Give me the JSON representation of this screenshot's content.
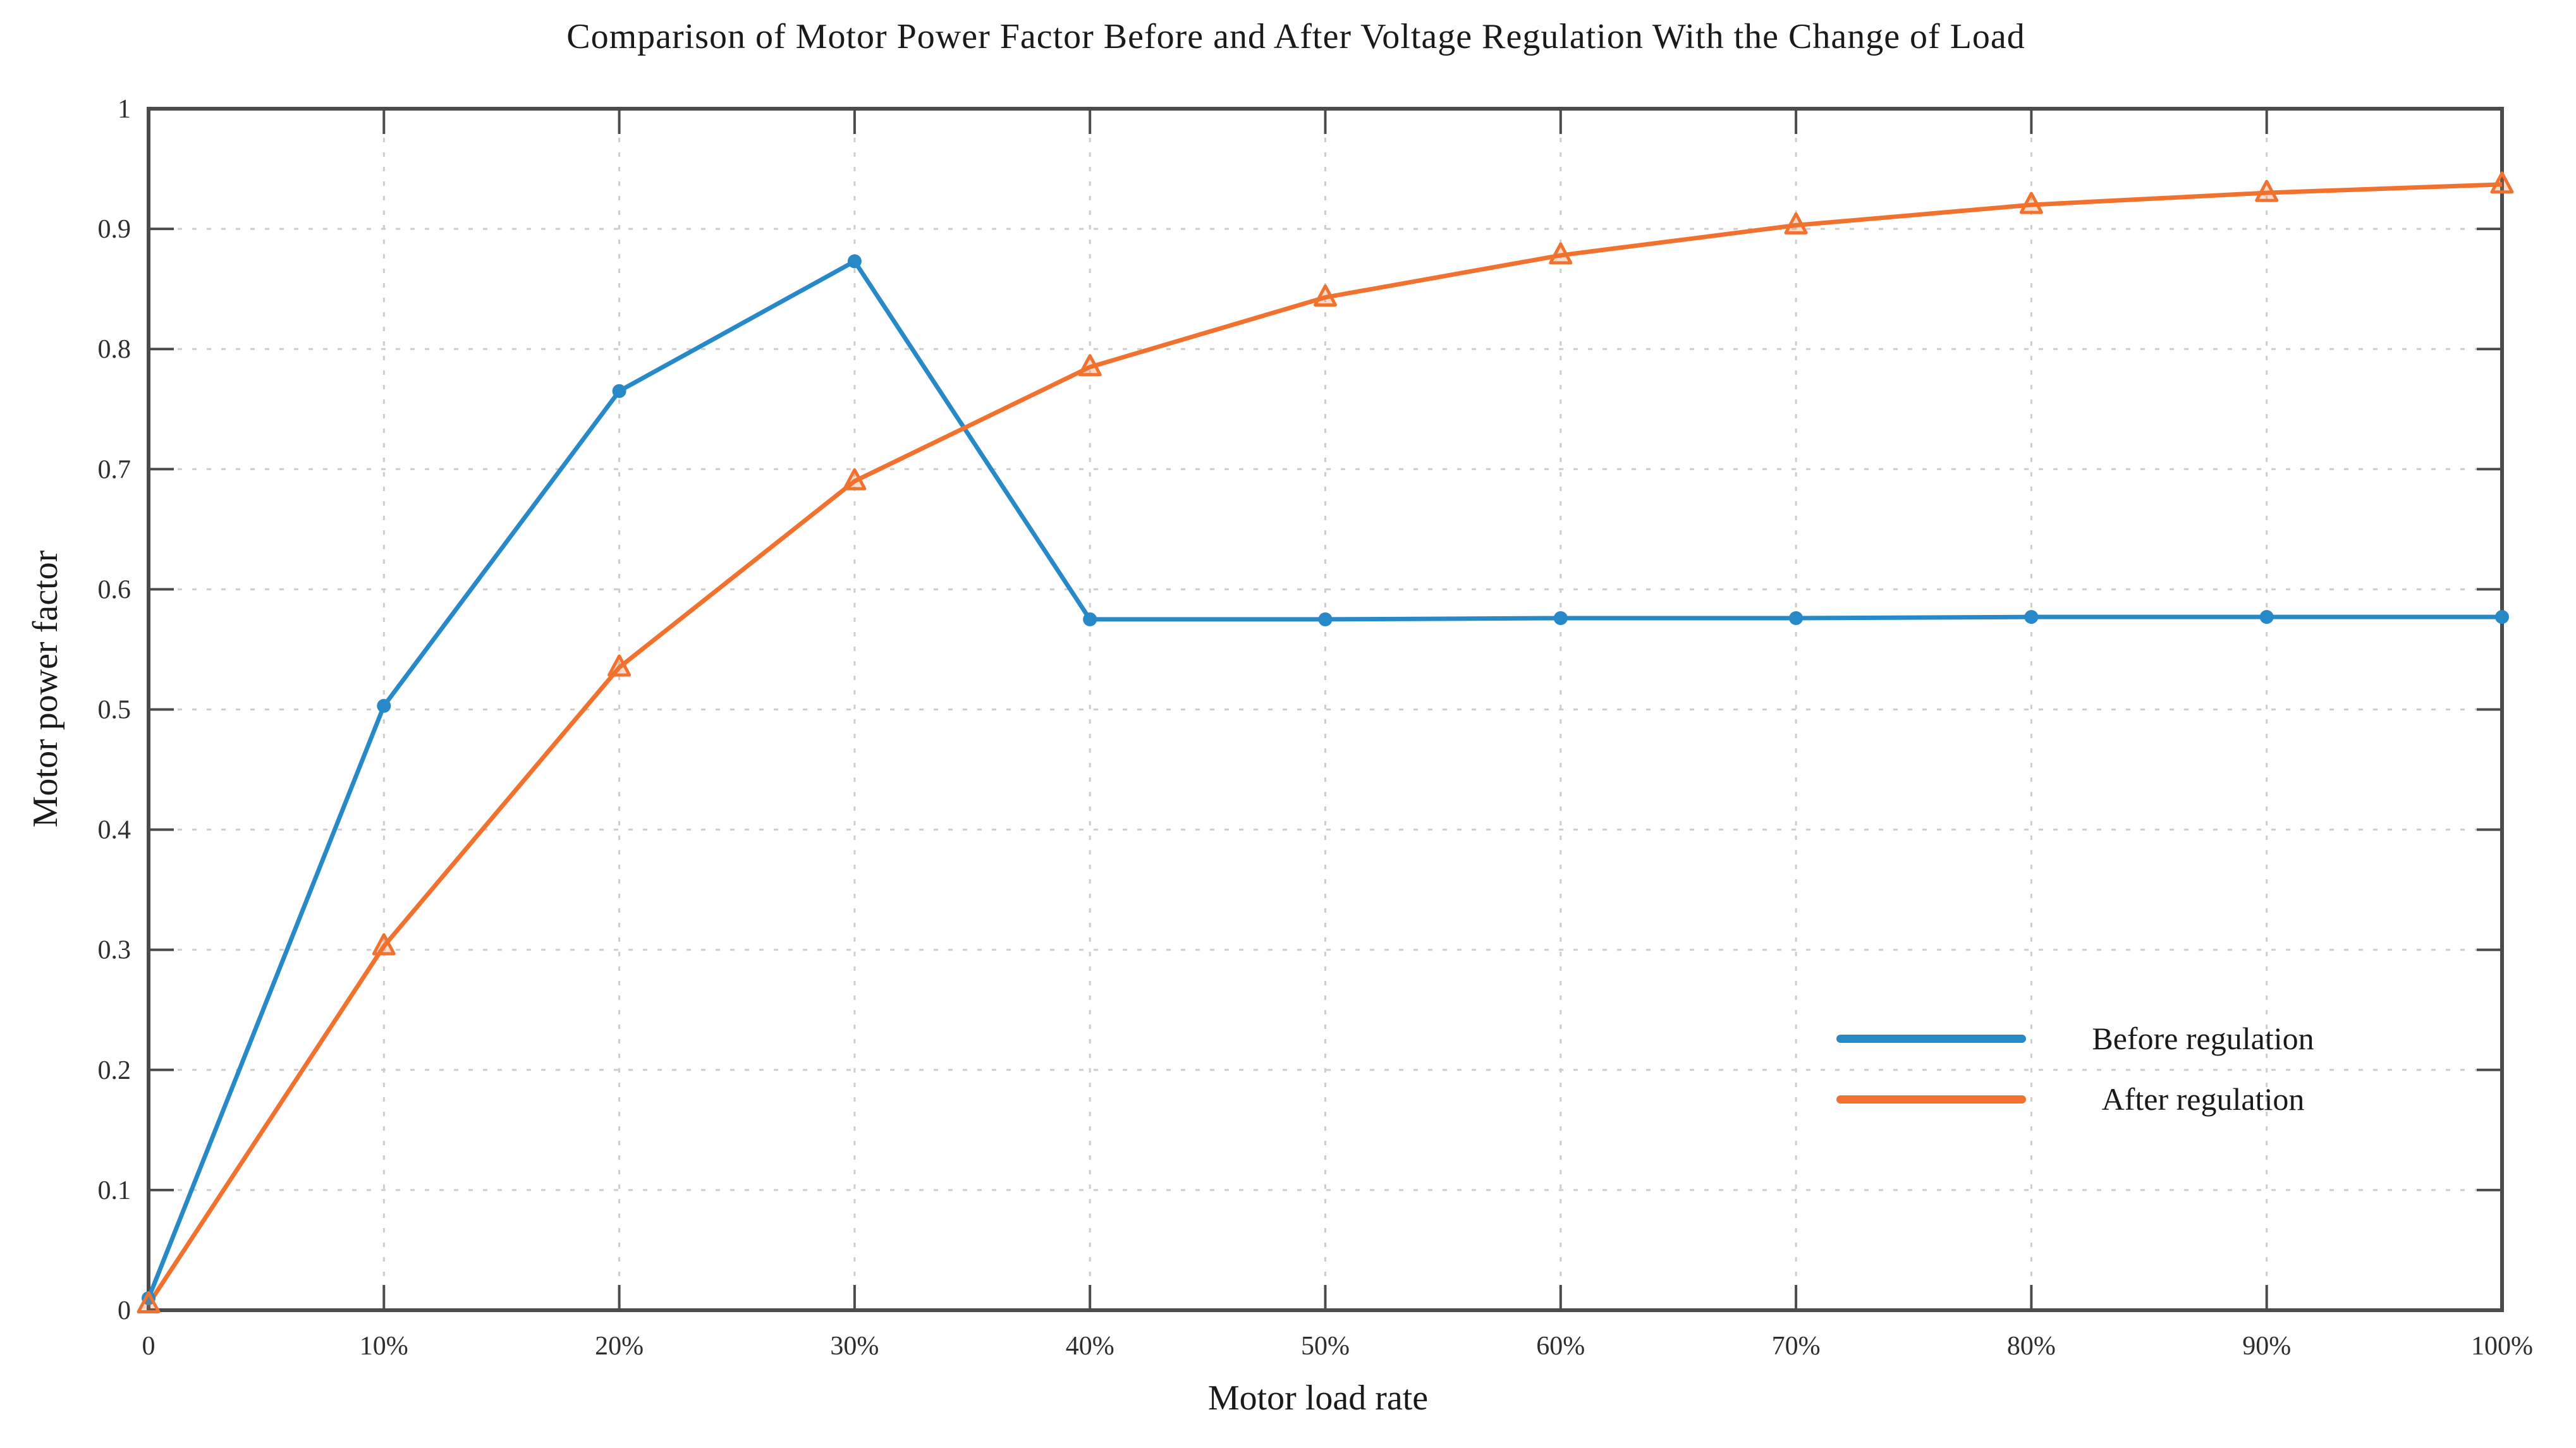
{
  "chart_data": {
    "type": "line",
    "title": "Comparison of Motor Power Factor Before and After Voltage Regulation With the Change of Load",
    "xlabel": "Motor load rate",
    "ylabel": "Motor power factor",
    "x": [
      0,
      10,
      20,
      30,
      40,
      50,
      60,
      70,
      80,
      90,
      100
    ],
    "x_tick_labels": [
      "0",
      "10%",
      "20%",
      "30%",
      "40%",
      "50%",
      "60%",
      "70%",
      "80%",
      "90%",
      "100%"
    ],
    "xlim": [
      0,
      100
    ],
    "y_ticks": [
      0,
      0.1,
      0.2,
      0.3,
      0.4,
      0.5,
      0.6,
      0.7,
      0.8,
      0.9,
      1
    ],
    "y_tick_labels": [
      "0",
      "0.1",
      "0.2",
      "0.3",
      "0.4",
      "0.5",
      "0.6",
      "0.7",
      "0.8",
      "0.9",
      "1"
    ],
    "ylim": [
      0,
      1
    ],
    "grid": "dashed",
    "box": true,
    "legend_position": "inside-lower-right",
    "axis_color": "#4b4b4b",
    "grid_color": "#cdcdcd",
    "tick_label_color": "#2e2e2e",
    "series": [
      {
        "name": "Before regulation",
        "color": "#2789c7",
        "marker": "circle",
        "values": [
          0.01,
          0.503,
          0.765,
          0.873,
          0.575,
          0.575,
          0.576,
          0.576,
          0.577,
          0.577,
          0.577
        ]
      },
      {
        "name": "After regulation",
        "color": "#f1712e",
        "marker": "triangle-up",
        "values": [
          0.005,
          0.303,
          0.535,
          0.69,
          0.785,
          0.843,
          0.878,
          0.903,
          0.92,
          0.93,
          0.937
        ]
      }
    ]
  }
}
